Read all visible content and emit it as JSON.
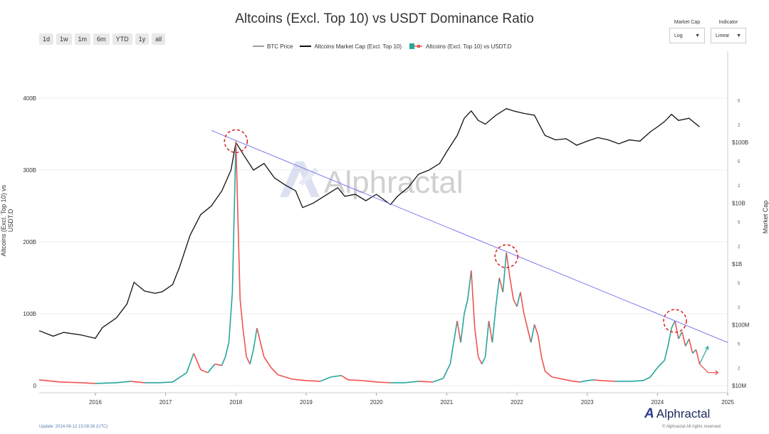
{
  "title": "Altcoins (Excl. Top 10) vs USDT Dominance Ratio",
  "range_buttons": [
    "1d",
    "1w",
    "1m",
    "6m",
    "YTD",
    "1y",
    "all"
  ],
  "controls": {
    "market_cap": {
      "label": "Market Cap",
      "value": "Log"
    },
    "indicator": {
      "label": "Indicator",
      "value": "Linear"
    }
  },
  "legend": [
    {
      "label": "BTC Price",
      "color": "#9e9e9e"
    },
    {
      "label": "Altcoins Market Cap (Excl. Top 10)",
      "color": "#111111"
    },
    {
      "label": "Altcoins (Excl. Top 10) vs USDT.D",
      "color_up": "#26a69a",
      "color_down": "#ef5350"
    }
  ],
  "watermark": "Alphractal",
  "footer": {
    "update": "Update: 2024-08-12 15:08:26 (UTC)",
    "rights": "© Alphractal All rights reserved",
    "brand": "Alphractal"
  },
  "chart_data": {
    "type": "line",
    "xlabel": "",
    "ylabel_left": "Altcoins (Excl. Top 10) vs USDT.D",
    "ylabel_right": "Market Cap",
    "x_ticks": [
      "2016",
      "2017",
      "2018",
      "2019",
      "2020",
      "2021",
      "2022",
      "2023",
      "2024",
      "2025"
    ],
    "y_left_ticks": [
      "0",
      "100B",
      "200B",
      "300B",
      "400B"
    ],
    "y_left_range": [
      0,
      480
    ],
    "y_right_major_ticks": [
      "$10M",
      "$100M",
      "$1B",
      "$10B",
      "$100B"
    ],
    "y_right_minor_ticks": [
      "2",
      "5",
      "2",
      "5",
      "2",
      "5",
      "2",
      "5",
      "2",
      "5"
    ],
    "y_right_range_log10": [
      7,
      12.5
    ],
    "series": [
      {
        "name": "Altcoins Market Cap (Excl. Top 10)",
        "axis": "right",
        "points": [
          [
            2015.2,
            80000000.0
          ],
          [
            2015.4,
            65000000.0
          ],
          [
            2015.55,
            75000000.0
          ],
          [
            2015.8,
            68000000.0
          ],
          [
            2016.0,
            60000000.0
          ],
          [
            2016.1,
            90000000.0
          ],
          [
            2016.3,
            130000000.0
          ],
          [
            2016.45,
            220000000.0
          ],
          [
            2016.55,
            500000000.0
          ],
          [
            2016.7,
            360000000.0
          ],
          [
            2016.85,
            330000000.0
          ],
          [
            2016.95,
            350000000.0
          ],
          [
            2017.1,
            460000000.0
          ],
          [
            2017.2,
            900000000.0
          ],
          [
            2017.35,
            3000000000.0
          ],
          [
            2017.5,
            6500000000.0
          ],
          [
            2017.65,
            9000000000.0
          ],
          [
            2017.8,
            16000000000.0
          ],
          [
            2017.93,
            35000000000.0
          ],
          [
            2018.0,
            100000000000.0
          ],
          [
            2018.1,
            65000000000.0
          ],
          [
            2018.25,
            35000000000.0
          ],
          [
            2018.4,
            45000000000.0
          ],
          [
            2018.55,
            26000000000.0
          ],
          [
            2018.7,
            20000000000.0
          ],
          [
            2018.85,
            16000000000.0
          ],
          [
            2018.95,
            8500000000.0
          ],
          [
            2019.1,
            10000000000.0
          ],
          [
            2019.3,
            14000000000.0
          ],
          [
            2019.45,
            18000000000.0
          ],
          [
            2019.55,
            13000000000.0
          ],
          [
            2019.7,
            14000000000.0
          ],
          [
            2019.85,
            11000000000.0
          ],
          [
            2020.0,
            14000000000.0
          ],
          [
            2020.2,
            9500000000.0
          ],
          [
            2020.3,
            13000000000.0
          ],
          [
            2020.45,
            18000000000.0
          ],
          [
            2020.6,
            30000000000.0
          ],
          [
            2020.75,
            35000000000.0
          ],
          [
            2020.9,
            45000000000.0
          ],
          [
            2021.0,
            70000000000.0
          ],
          [
            2021.15,
            130000000000.0
          ],
          [
            2021.25,
            250000000000.0
          ],
          [
            2021.35,
            330000000000.0
          ],
          [
            2021.45,
            230000000000.0
          ],
          [
            2021.55,
            200000000000.0
          ],
          [
            2021.7,
            280000000000.0
          ],
          [
            2021.85,
            360000000000.0
          ],
          [
            2021.95,
            330000000000.0
          ],
          [
            2022.1,
            300000000000.0
          ],
          [
            2022.25,
            280000000000.0
          ],
          [
            2022.4,
            130000000000.0
          ],
          [
            2022.55,
            110000000000.0
          ],
          [
            2022.7,
            115000000000.0
          ],
          [
            2022.85,
            90000000000.0
          ],
          [
            2023.0,
            105000000000.0
          ],
          [
            2023.15,
            120000000000.0
          ],
          [
            2023.3,
            110000000000.0
          ],
          [
            2023.45,
            95000000000.0
          ],
          [
            2023.6,
            110000000000.0
          ],
          [
            2023.75,
            105000000000.0
          ],
          [
            2023.9,
            150000000000.0
          ],
          [
            2024.0,
            180000000000.0
          ],
          [
            2024.1,
            220000000000.0
          ],
          [
            2024.2,
            290000000000.0
          ],
          [
            2024.3,
            230000000000.0
          ],
          [
            2024.45,
            250000000000.0
          ],
          [
            2024.6,
            180000000000.0
          ]
        ]
      },
      {
        "name": "Altcoins (Excl. Top 10) vs USDT.D",
        "axis": "left",
        "points": [
          [
            2015.2,
            8
          ],
          [
            2015.5,
            5
          ],
          [
            2015.8,
            4
          ],
          [
            2016.0,
            3
          ],
          [
            2016.3,
            4
          ],
          [
            2016.5,
            6
          ],
          [
            2016.7,
            4
          ],
          [
            2016.9,
            4
          ],
          [
            2017.1,
            5
          ],
          [
            2017.3,
            18
          ],
          [
            2017.4,
            45
          ],
          [
            2017.5,
            22
          ],
          [
            2017.6,
            18
          ],
          [
            2017.7,
            30
          ],
          [
            2017.8,
            28
          ],
          [
            2017.85,
            40
          ],
          [
            2017.9,
            60
          ],
          [
            2017.95,
            130
          ],
          [
            2018.0,
            340
          ],
          [
            2018.03,
            230
          ],
          [
            2018.06,
            120
          ],
          [
            2018.1,
            80
          ],
          [
            2018.15,
            40
          ],
          [
            2018.2,
            30
          ],
          [
            2018.25,
            50
          ],
          [
            2018.3,
            80
          ],
          [
            2018.35,
            60
          ],
          [
            2018.4,
            40
          ],
          [
            2018.5,
            25
          ],
          [
            2018.6,
            15
          ],
          [
            2018.7,
            12
          ],
          [
            2018.8,
            9
          ],
          [
            2018.9,
            8
          ],
          [
            2019.0,
            7
          ],
          [
            2019.2,
            6
          ],
          [
            2019.35,
            12
          ],
          [
            2019.5,
            14
          ],
          [
            2019.6,
            8
          ],
          [
            2019.8,
            7
          ],
          [
            2020.0,
            5
          ],
          [
            2020.2,
            4
          ],
          [
            2020.4,
            4
          ],
          [
            2020.6,
            6
          ],
          [
            2020.8,
            5
          ],
          [
            2020.95,
            10
          ],
          [
            2021.05,
            30
          ],
          [
            2021.1,
            60
          ],
          [
            2021.15,
            90
          ],
          [
            2021.2,
            60
          ],
          [
            2021.25,
            100
          ],
          [
            2021.3,
            120
          ],
          [
            2021.35,
            160
          ],
          [
            2021.4,
            80
          ],
          [
            2021.45,
            40
          ],
          [
            2021.5,
            30
          ],
          [
            2021.55,
            40
          ],
          [
            2021.6,
            90
          ],
          [
            2021.65,
            60
          ],
          [
            2021.7,
            110
          ],
          [
            2021.75,
            150
          ],
          [
            2021.8,
            130
          ],
          [
            2021.85,
            185
          ],
          [
            2021.9,
            150
          ],
          [
            2021.95,
            120
          ],
          [
            2022.0,
            110
          ],
          [
            2022.05,
            130
          ],
          [
            2022.1,
            100
          ],
          [
            2022.15,
            80
          ],
          [
            2022.2,
            60
          ],
          [
            2022.25,
            85
          ],
          [
            2022.3,
            70
          ],
          [
            2022.35,
            40
          ],
          [
            2022.4,
            20
          ],
          [
            2022.5,
            12
          ],
          [
            2022.6,
            10
          ],
          [
            2022.7,
            8
          ],
          [
            2022.8,
            6
          ],
          [
            2022.9,
            5
          ],
          [
            2023.0,
            7
          ],
          [
            2023.1,
            8
          ],
          [
            2023.2,
            7
          ],
          [
            2023.4,
            6
          ],
          [
            2023.6,
            6
          ],
          [
            2023.8,
            7
          ],
          [
            2023.9,
            12
          ],
          [
            2024.0,
            25
          ],
          [
            2024.1,
            35
          ],
          [
            2024.15,
            55
          ],
          [
            2024.2,
            80
          ],
          [
            2024.25,
            90
          ],
          [
            2024.3,
            65
          ],
          [
            2024.35,
            75
          ],
          [
            2024.4,
            55
          ],
          [
            2024.45,
            65
          ],
          [
            2024.5,
            45
          ],
          [
            2024.55,
            50
          ],
          [
            2024.6,
            30
          ]
        ]
      }
    ],
    "annotations": [
      {
        "type": "trendline",
        "from": [
          2017.65,
          355
        ],
        "to": [
          2025.0,
          60
        ],
        "color": "#7b7bef"
      },
      {
        "type": "circle",
        "at": [
          2018.0,
          340
        ]
      },
      {
        "type": "circle",
        "at": [
          2021.85,
          180
        ]
      },
      {
        "type": "circle",
        "at": [
          2024.25,
          90
        ]
      },
      {
        "type": "arrow-up",
        "at": [
          2024.6,
          30
        ],
        "color": "#26a69a"
      },
      {
        "type": "arrow-down",
        "at": [
          2024.6,
          30
        ],
        "color": "#ef4444"
      }
    ]
  }
}
